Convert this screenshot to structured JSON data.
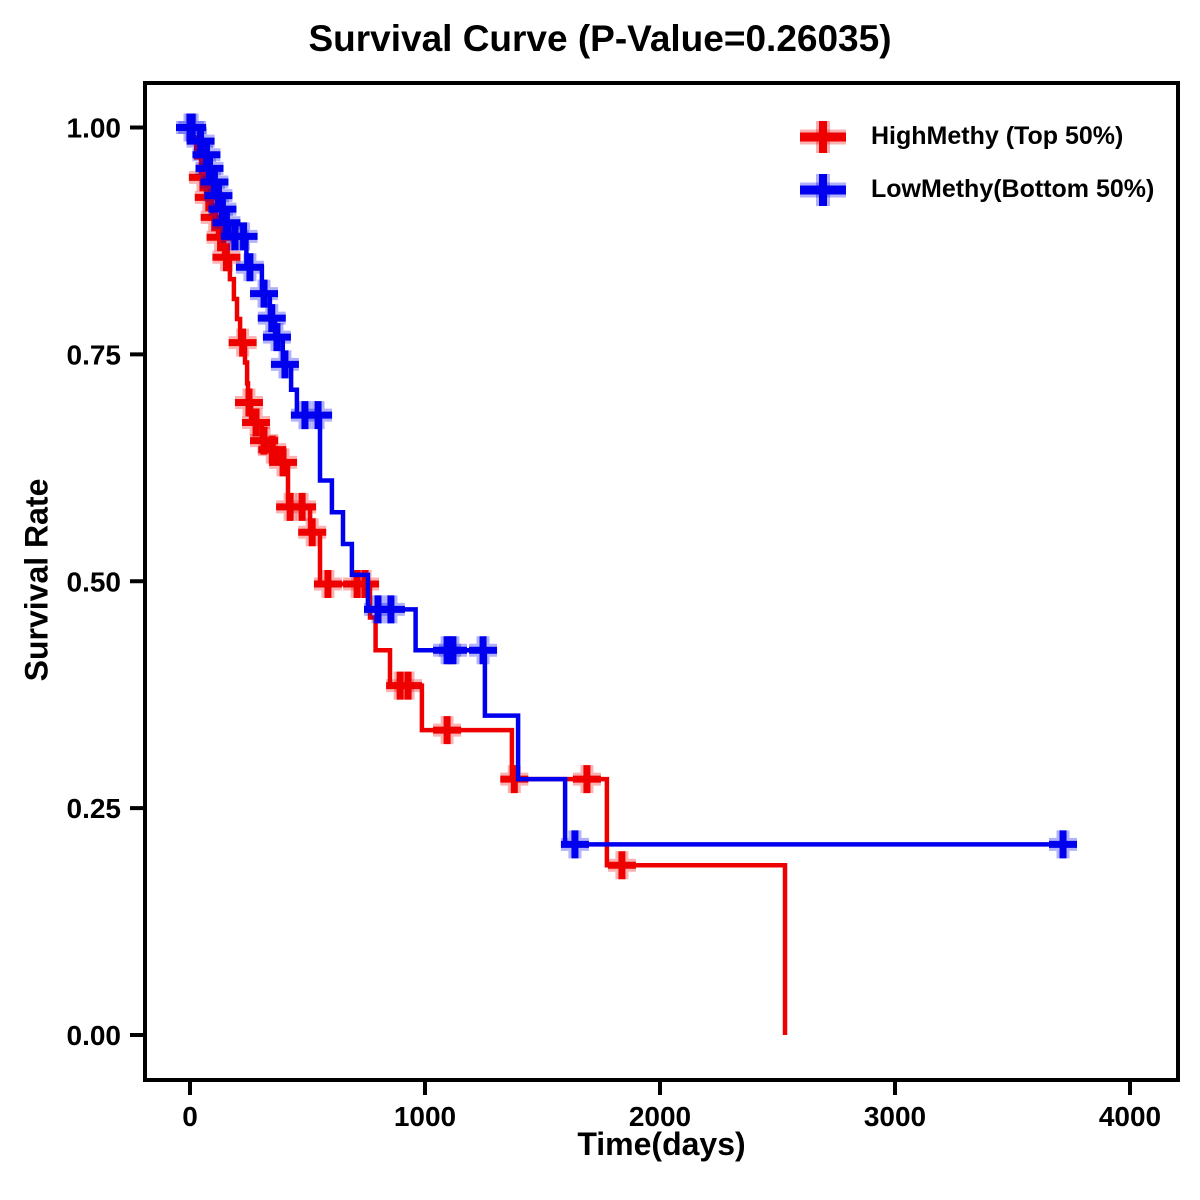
{
  "title": "Survival Curve (P-Value=0.26035)",
  "p_value": "0.26035",
  "axes": {
    "xlabel": "Time(days)",
    "ylabel": "Survival Rate",
    "x_tick_values": [
      0,
      1000,
      2000,
      3000,
      4000
    ],
    "x_tick_labels": [
      "0",
      "1000",
      "2000",
      "3000",
      "4000"
    ],
    "y_tick_values": [
      0.0,
      0.25,
      0.5,
      0.75,
      1.0
    ],
    "y_tick_labels": [
      "0.00",
      "0.25",
      "0.50",
      "0.75",
      "1.00"
    ],
    "xlim": [
      -190,
      4210
    ],
    "ylim": [
      -0.05,
      1.05
    ],
    "grid": false,
    "border_color": "#000000"
  },
  "legend": {
    "position": "top-right",
    "items": [
      {
        "label": "HighMethy (Top 50%)",
        "color": "#ee0000"
      },
      {
        "label": "LowMethy(Bottom 50%)",
        "color": "#0000ee"
      }
    ]
  },
  "chart_data": {
    "type": "line",
    "subtype": "kaplan-meier-step",
    "title": "Survival Curve (P-Value=0.26035)",
    "xlabel": "Time(days)",
    "ylabel": "Survival Rate",
    "xlim": [
      -190,
      4210
    ],
    "ylim": [
      -0.05,
      1.05
    ],
    "legend_position": "upper right",
    "series": [
      {
        "name": "HighMethy (Top 50%)",
        "color": "#ee0000",
        "steps": [
          [
            0,
            0.989
          ],
          [
            26,
            0.967
          ],
          [
            47,
            0.945
          ],
          [
            68,
            0.923
          ],
          [
            94,
            0.901
          ],
          [
            119,
            0.879
          ],
          [
            145,
            0.857
          ],
          [
            170,
            0.833
          ],
          [
            187,
            0.811
          ],
          [
            200,
            0.789
          ],
          [
            213,
            0.763
          ],
          [
            234,
            0.741
          ],
          [
            243,
            0.718
          ],
          [
            247,
            0.697
          ],
          [
            260,
            0.675
          ],
          [
            306,
            0.655
          ],
          [
            340,
            0.645
          ],
          [
            372,
            0.631
          ],
          [
            417,
            0.582
          ],
          [
            511,
            0.554
          ],
          [
            553,
            0.497
          ],
          [
            766,
            0.46
          ],
          [
            790,
            0.424
          ],
          [
            851,
            0.385
          ],
          [
            987,
            0.336
          ],
          [
            1370,
            0.282
          ],
          [
            1774,
            0.187
          ],
          [
            2532,
            0.0
          ]
        ],
        "censors": [
          [
            55,
            0.945
          ],
          [
            80,
            0.923
          ],
          [
            105,
            0.901
          ],
          [
            130,
            0.879
          ],
          [
            155,
            0.857
          ],
          [
            224,
            0.763
          ],
          [
            251,
            0.697
          ],
          [
            281,
            0.675
          ],
          [
            315,
            0.655
          ],
          [
            350,
            0.645
          ],
          [
            396,
            0.631
          ],
          [
            426,
            0.582
          ],
          [
            477,
            0.582
          ],
          [
            520,
            0.554
          ],
          [
            587,
            0.497
          ],
          [
            711,
            0.497
          ],
          [
            745,
            0.497
          ],
          [
            894,
            0.385
          ],
          [
            928,
            0.385
          ],
          [
            1094,
            0.336
          ],
          [
            1380,
            0.282
          ],
          [
            1689,
            0.282
          ],
          [
            1838,
            0.187
          ]
        ]
      },
      {
        "name": "LowMethy(Bottom 50%)",
        "color": "#0000ee",
        "steps": [
          [
            0,
            1.0
          ],
          [
            43,
            0.985
          ],
          [
            64,
            0.97
          ],
          [
            77,
            0.955
          ],
          [
            98,
            0.94
          ],
          [
            115,
            0.925
          ],
          [
            132,
            0.91
          ],
          [
            149,
            0.895
          ],
          [
            166,
            0.88
          ],
          [
            240,
            0.846
          ],
          [
            306,
            0.817
          ],
          [
            340,
            0.79
          ],
          [
            362,
            0.769
          ],
          [
            395,
            0.739
          ],
          [
            430,
            0.711
          ],
          [
            455,
            0.683
          ],
          [
            553,
            0.611
          ],
          [
            604,
            0.576
          ],
          [
            651,
            0.541
          ],
          [
            689,
            0.507
          ],
          [
            757,
            0.469
          ],
          [
            960,
            0.424
          ],
          [
            1255,
            0.352
          ],
          [
            1396,
            0.282
          ],
          [
            1596,
            0.21
          ],
          [
            3745,
            0.21
          ]
        ],
        "censors": [
          [
            0,
            1.0
          ],
          [
            9,
            1.0
          ],
          [
            45,
            0.985
          ],
          [
            70,
            0.97
          ],
          [
            83,
            0.955
          ],
          [
            104,
            0.94
          ],
          [
            121,
            0.925
          ],
          [
            138,
            0.91
          ],
          [
            155,
            0.895
          ],
          [
            191,
            0.88
          ],
          [
            228,
            0.88
          ],
          [
            255,
            0.846
          ],
          [
            315,
            0.817
          ],
          [
            348,
            0.79
          ],
          [
            370,
            0.769
          ],
          [
            404,
            0.739
          ],
          [
            489,
            0.683
          ],
          [
            545,
            0.683
          ],
          [
            800,
            0.469
          ],
          [
            855,
            0.469
          ],
          [
            1094,
            0.424
          ],
          [
            1119,
            0.424
          ],
          [
            1247,
            0.424
          ],
          [
            1638,
            0.21
          ],
          [
            3715,
            0.21
          ]
        ]
      }
    ]
  }
}
